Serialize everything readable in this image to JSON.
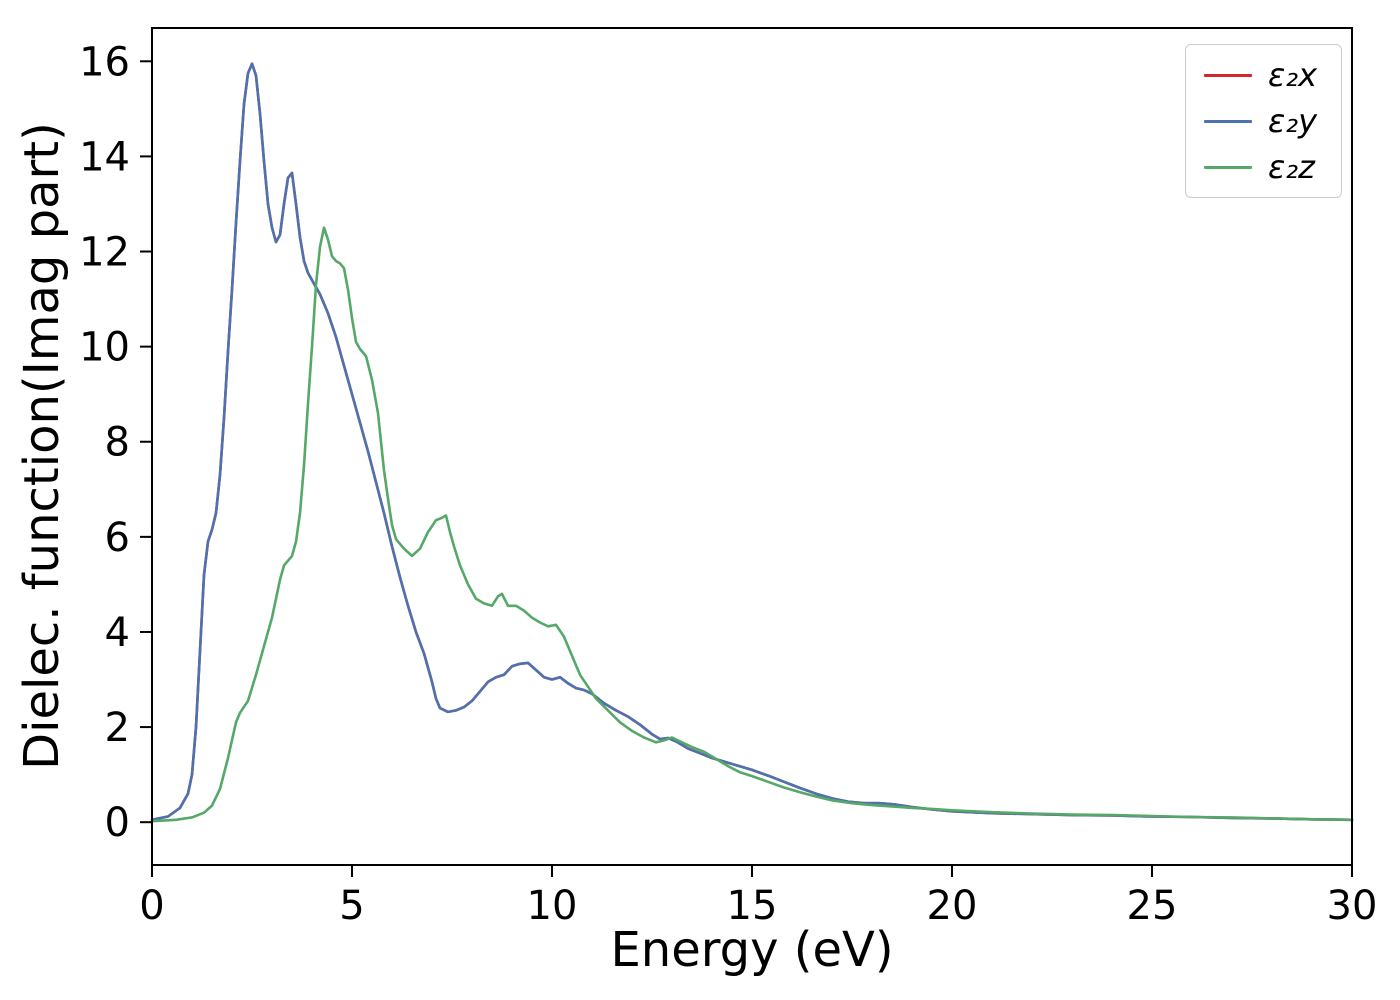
{
  "chart_data": {
    "type": "line",
    "title": "",
    "xlabel": "Energy (eV)",
    "ylabel": "Dielec. function(Imag part)",
    "xlim": [
      0,
      30
    ],
    "ylim": [
      -0.9,
      16.7
    ],
    "x_ticks": [
      0,
      5,
      10,
      15,
      20,
      25,
      30
    ],
    "y_ticks": [
      0,
      2,
      4,
      6,
      8,
      10,
      12,
      14,
      16
    ],
    "grid": false,
    "legend_position": "upper right",
    "axis_color": "#000000",
    "series": [
      {
        "name": "ε₂x",
        "color": "#d62728",
        "points_same_as": "ε₂y"
      },
      {
        "name": "ε₂y",
        "color": "#4c72b0",
        "points": [
          [
            0,
            0.05
          ],
          [
            0.4,
            0.12
          ],
          [
            0.7,
            0.3
          ],
          [
            0.9,
            0.6
          ],
          [
            1.0,
            1.0
          ],
          [
            1.1,
            2.0
          ],
          [
            1.2,
            3.6
          ],
          [
            1.3,
            5.2
          ],
          [
            1.4,
            5.9
          ],
          [
            1.5,
            6.15
          ],
          [
            1.6,
            6.5
          ],
          [
            1.7,
            7.3
          ],
          [
            1.8,
            8.5
          ],
          [
            1.9,
            9.9
          ],
          [
            2.0,
            11.2
          ],
          [
            2.1,
            12.6
          ],
          [
            2.2,
            13.9
          ],
          [
            2.3,
            15.1
          ],
          [
            2.4,
            15.75
          ],
          [
            2.5,
            15.95
          ],
          [
            2.6,
            15.7
          ],
          [
            2.7,
            14.9
          ],
          [
            2.8,
            13.9
          ],
          [
            2.9,
            13.0
          ],
          [
            3.0,
            12.5
          ],
          [
            3.1,
            12.2
          ],
          [
            3.2,
            12.35
          ],
          [
            3.3,
            13.0
          ],
          [
            3.4,
            13.55
          ],
          [
            3.5,
            13.65
          ],
          [
            3.6,
            13.0
          ],
          [
            3.7,
            12.3
          ],
          [
            3.8,
            11.8
          ],
          [
            3.9,
            11.55
          ],
          [
            4.0,
            11.4
          ],
          [
            4.2,
            11.1
          ],
          [
            4.4,
            10.7
          ],
          [
            4.6,
            10.2
          ],
          [
            4.8,
            9.6
          ],
          [
            5.0,
            9.0
          ],
          [
            5.2,
            8.4
          ],
          [
            5.4,
            7.8
          ],
          [
            5.6,
            7.15
          ],
          [
            5.8,
            6.5
          ],
          [
            6.0,
            5.8
          ],
          [
            6.2,
            5.15
          ],
          [
            6.4,
            4.55
          ],
          [
            6.6,
            4.0
          ],
          [
            6.8,
            3.55
          ],
          [
            7.0,
            2.95
          ],
          [
            7.1,
            2.6
          ],
          [
            7.2,
            2.4
          ],
          [
            7.4,
            2.32
          ],
          [
            7.6,
            2.35
          ],
          [
            7.8,
            2.42
          ],
          [
            8.0,
            2.55
          ],
          [
            8.2,
            2.75
          ],
          [
            8.4,
            2.95
          ],
          [
            8.6,
            3.05
          ],
          [
            8.8,
            3.1
          ],
          [
            9.0,
            3.28
          ],
          [
            9.2,
            3.33
          ],
          [
            9.4,
            3.35
          ],
          [
            9.6,
            3.2
          ],
          [
            9.8,
            3.05
          ],
          [
            10.0,
            3.0
          ],
          [
            10.2,
            3.05
          ],
          [
            10.4,
            2.92
          ],
          [
            10.6,
            2.82
          ],
          [
            10.8,
            2.78
          ],
          [
            11.0,
            2.7
          ],
          [
            11.3,
            2.5
          ],
          [
            11.6,
            2.35
          ],
          [
            11.9,
            2.22
          ],
          [
            12.2,
            2.05
          ],
          [
            12.5,
            1.85
          ],
          [
            12.7,
            1.75
          ],
          [
            12.9,
            1.77
          ],
          [
            13.1,
            1.7
          ],
          [
            13.4,
            1.55
          ],
          [
            13.7,
            1.45
          ],
          [
            14.0,
            1.35
          ],
          [
            14.4,
            1.25
          ],
          [
            14.8,
            1.15
          ],
          [
            15.0,
            1.1
          ],
          [
            15.4,
            0.98
          ],
          [
            15.8,
            0.85
          ],
          [
            16.2,
            0.72
          ],
          [
            16.6,
            0.6
          ],
          [
            17.0,
            0.5
          ],
          [
            17.4,
            0.43
          ],
          [
            17.8,
            0.4
          ],
          [
            18.2,
            0.4
          ],
          [
            18.6,
            0.37
          ],
          [
            19.0,
            0.32
          ],
          [
            19.5,
            0.27
          ],
          [
            20.0,
            0.23
          ],
          [
            21,
            0.19
          ],
          [
            22,
            0.17
          ],
          [
            23,
            0.15
          ],
          [
            24,
            0.14
          ],
          [
            25,
            0.12
          ],
          [
            26,
            0.11
          ],
          [
            27,
            0.09
          ],
          [
            28,
            0.08
          ],
          [
            29,
            0.06
          ],
          [
            30,
            0.05
          ]
        ]
      },
      {
        "name": "ε₂z",
        "color": "#55a868",
        "points": [
          [
            0,
            0.02
          ],
          [
            0.6,
            0.05
          ],
          [
            1.0,
            0.1
          ],
          [
            1.3,
            0.2
          ],
          [
            1.5,
            0.35
          ],
          [
            1.7,
            0.7
          ],
          [
            1.9,
            1.35
          ],
          [
            2.1,
            2.1
          ],
          [
            2.2,
            2.3
          ],
          [
            2.4,
            2.55
          ],
          [
            2.6,
            3.1
          ],
          [
            2.8,
            3.7
          ],
          [
            3.0,
            4.3
          ],
          [
            3.2,
            5.1
          ],
          [
            3.3,
            5.4
          ],
          [
            3.5,
            5.6
          ],
          [
            3.6,
            5.9
          ],
          [
            3.7,
            6.5
          ],
          [
            3.8,
            7.5
          ],
          [
            3.9,
            8.8
          ],
          [
            4.0,
            10.0
          ],
          [
            4.1,
            11.3
          ],
          [
            4.2,
            12.1
          ],
          [
            4.3,
            12.5
          ],
          [
            4.4,
            12.25
          ],
          [
            4.5,
            11.9
          ],
          [
            4.6,
            11.8
          ],
          [
            4.7,
            11.75
          ],
          [
            4.8,
            11.65
          ],
          [
            4.9,
            11.2
          ],
          [
            5.0,
            10.6
          ],
          [
            5.1,
            10.1
          ],
          [
            5.2,
            9.95
          ],
          [
            5.35,
            9.8
          ],
          [
            5.5,
            9.3
          ],
          [
            5.65,
            8.6
          ],
          [
            5.8,
            7.4
          ],
          [
            5.9,
            6.8
          ],
          [
            6.0,
            6.25
          ],
          [
            6.1,
            5.95
          ],
          [
            6.3,
            5.75
          ],
          [
            6.5,
            5.6
          ],
          [
            6.7,
            5.75
          ],
          [
            6.9,
            6.1
          ],
          [
            7.1,
            6.35
          ],
          [
            7.25,
            6.4
          ],
          [
            7.35,
            6.45
          ],
          [
            7.45,
            6.1
          ],
          [
            7.55,
            5.8
          ],
          [
            7.7,
            5.4
          ],
          [
            7.9,
            5.0
          ],
          [
            8.1,
            4.7
          ],
          [
            8.3,
            4.6
          ],
          [
            8.5,
            4.55
          ],
          [
            8.65,
            4.75
          ],
          [
            8.75,
            4.8
          ],
          [
            8.9,
            4.55
          ],
          [
            9.1,
            4.55
          ],
          [
            9.3,
            4.45
          ],
          [
            9.5,
            4.3
          ],
          [
            9.7,
            4.2
          ],
          [
            9.9,
            4.12
          ],
          [
            10.1,
            4.15
          ],
          [
            10.3,
            3.9
          ],
          [
            10.5,
            3.5
          ],
          [
            10.7,
            3.1
          ],
          [
            10.9,
            2.85
          ],
          [
            11.1,
            2.6
          ],
          [
            11.4,
            2.35
          ],
          [
            11.7,
            2.1
          ],
          [
            12.0,
            1.92
          ],
          [
            12.3,
            1.78
          ],
          [
            12.6,
            1.68
          ],
          [
            12.8,
            1.72
          ],
          [
            13.0,
            1.78
          ],
          [
            13.2,
            1.7
          ],
          [
            13.5,
            1.58
          ],
          [
            13.8,
            1.48
          ],
          [
            14.1,
            1.33
          ],
          [
            14.4,
            1.18
          ],
          [
            14.7,
            1.05
          ],
          [
            15.0,
            0.97
          ],
          [
            15.4,
            0.85
          ],
          [
            15.8,
            0.73
          ],
          [
            16.2,
            0.63
          ],
          [
            16.6,
            0.54
          ],
          [
            17.0,
            0.46
          ],
          [
            17.5,
            0.4
          ],
          [
            18.0,
            0.36
          ],
          [
            18.5,
            0.33
          ],
          [
            19.0,
            0.3
          ],
          [
            19.5,
            0.28
          ],
          [
            20.0,
            0.25
          ],
          [
            21,
            0.21
          ],
          [
            22,
            0.18
          ],
          [
            23,
            0.16
          ],
          [
            24,
            0.15
          ],
          [
            25,
            0.13
          ],
          [
            26,
            0.11
          ],
          [
            27,
            0.1
          ],
          [
            28,
            0.08
          ],
          [
            29,
            0.06
          ],
          [
            30,
            0.05
          ]
        ]
      }
    ]
  }
}
